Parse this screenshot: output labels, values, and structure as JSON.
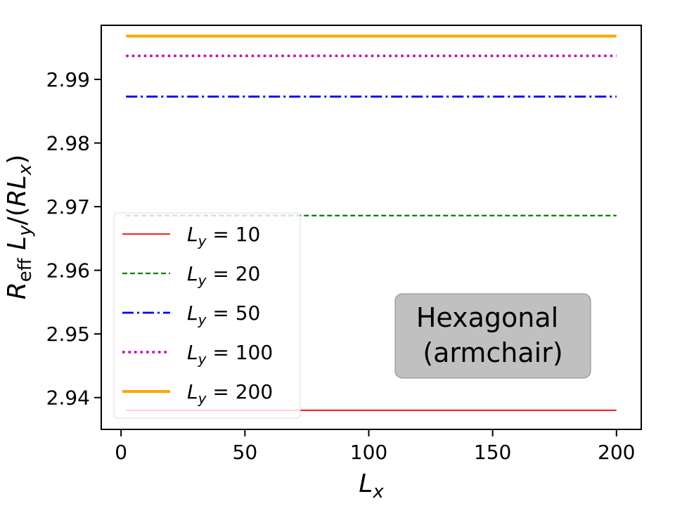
{
  "chart_data": {
    "type": "line",
    "xlabel": "L_x",
    "ylabel": "R_eff L_y/(R L_x)",
    "xlim": [
      -8,
      210
    ],
    "ylim": [
      2.935,
      2.9985
    ],
    "x": [
      2,
      200
    ],
    "xticks": [
      0,
      50,
      100,
      150,
      200
    ],
    "xtick_labels": [
      "0",
      "50",
      "100",
      "150",
      "200"
    ],
    "yticks": [
      2.94,
      2.95,
      2.96,
      2.97,
      2.98,
      2.99
    ],
    "ytick_labels": [
      "2.94",
      "2.95",
      "2.96",
      "2.97",
      "2.98",
      "2.99"
    ],
    "grid": false,
    "legend_position": "left",
    "series": [
      {
        "name": "L_y = 10",
        "label_base": "L",
        "label_sub": "y",
        "label_rest": " = 10",
        "values": [
          2.938,
          2.938
        ],
        "color": "#ff0000",
        "style": "solid"
      },
      {
        "name": "L_y = 20",
        "label_base": "L",
        "label_sub": "y",
        "label_rest": " = 20",
        "values": [
          2.9686,
          2.9686
        ],
        "color": "#008000",
        "style": "dashed"
      },
      {
        "name": "L_y = 50",
        "label_base": "L",
        "label_sub": "y",
        "label_rest": " = 50",
        "values": [
          2.9873,
          2.9873
        ],
        "color": "#0000ff",
        "style": "dashdot"
      },
      {
        "name": "L_y = 100",
        "label_base": "L",
        "label_sub": "y",
        "label_rest": " = 100",
        "values": [
          2.9937,
          2.9937
        ],
        "color": "#bf00bf",
        "style": "dotted"
      },
      {
        "name": "L_y = 200",
        "label_base": "L",
        "label_sub": "y",
        "label_rest": " = 200",
        "values": [
          2.9968,
          2.9968
        ],
        "color": "#ffa500",
        "style": "solid-thick"
      }
    ],
    "annotation": {
      "line1": "Hexagonal",
      "line2": "(armchair)",
      "background": "#c0c0c0"
    }
  }
}
